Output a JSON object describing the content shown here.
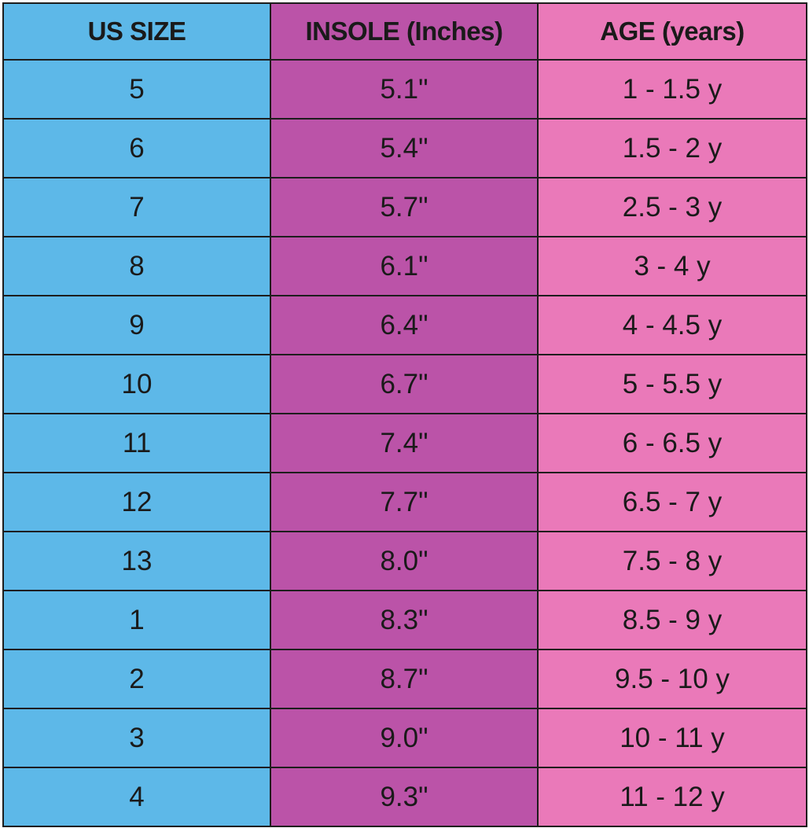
{
  "colors": {
    "size_column": "#5db8e8",
    "insole_column": "#bb53a8",
    "age_column": "#ea79b9",
    "grid_lines": "#1d1d1d",
    "text": "#1a1a1a"
  },
  "table": {
    "headers": {
      "size": "US SIZE",
      "insole": "INSOLE (Inches)",
      "age": "AGE (years)"
    },
    "rows": [
      {
        "size": "5",
        "insole": "5.1\"",
        "age": "1 - 1.5 y"
      },
      {
        "size": "6",
        "insole": "5.4\"",
        "age": "1.5 - 2 y"
      },
      {
        "size": "7",
        "insole": "5.7\"",
        "age": "2.5 - 3 y"
      },
      {
        "size": "8",
        "insole": "6.1\"",
        "age": "3 - 4 y"
      },
      {
        "size": "9",
        "insole": "6.4\"",
        "age": "4 - 4.5 y"
      },
      {
        "size": "10",
        "insole": "6.7\"",
        "age": "5 - 5.5 y"
      },
      {
        "size": "11",
        "insole": "7.4\"",
        "age": "6 - 6.5 y"
      },
      {
        "size": "12",
        "insole": "7.7\"",
        "age": "6.5 - 7 y"
      },
      {
        "size": "13",
        "insole": "8.0\"",
        "age": "7.5 - 8 y"
      },
      {
        "size": "1",
        "insole": "8.3\"",
        "age": "8.5 - 9 y"
      },
      {
        "size": "2",
        "insole": "8.7\"",
        "age": "9.5 - 10 y"
      },
      {
        "size": "3",
        "insole": "9.0\"",
        "age": "10 - 11 y"
      },
      {
        "size": "4",
        "insole": "9.3\"",
        "age": "11 - 12 y"
      }
    ]
  }
}
